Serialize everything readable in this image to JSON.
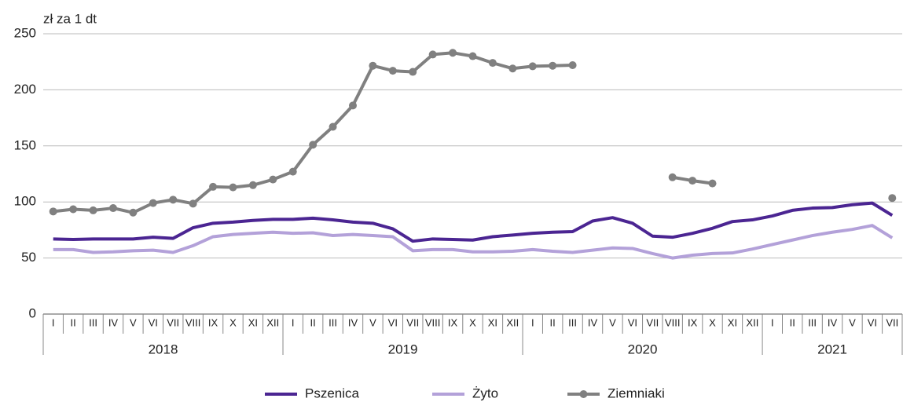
{
  "chart_data": {
    "type": "line",
    "y_axis_label": "zł za 1 dt",
    "categories": [
      "I",
      "II",
      "III",
      "IV",
      "V",
      "VI",
      "VII",
      "VIII",
      "IX",
      "X",
      "XI",
      "XII",
      "I",
      "II",
      "III",
      "IV",
      "V",
      "VI",
      "VII",
      "VIII",
      "IX",
      "X",
      "XI",
      "XII",
      "I",
      "II",
      "III",
      "IV",
      "V",
      "VI",
      "VII",
      "VIII",
      "IX",
      "X",
      "XI",
      "XII",
      "I",
      "II",
      "III",
      "IV",
      "V",
      "VI",
      "VII"
    ],
    "years": [
      "2018",
      "2019",
      "2020",
      "2021"
    ],
    "series": [
      {
        "name": "Pszenica",
        "color": "#4b2592",
        "markers": false,
        "values": [
          67,
          66.5,
          67,
          67,
          67,
          68.5,
          67.5,
          77,
          81,
          82,
          83.5,
          84.5,
          84.5,
          85.5,
          84,
          82,
          81,
          76,
          65,
          67,
          66.5,
          66,
          69,
          70.5,
          72,
          73,
          73.5,
          83,
          86,
          81,
          69.5,
          68.5,
          72,
          76.5,
          82.5,
          84,
          87.5,
          92.5,
          94.5,
          95,
          97.5,
          99,
          88
        ]
      },
      {
        "name": "Żyto",
        "color": "#b3a1d9",
        "markers": false,
        "values": [
          57.5,
          57.5,
          55,
          55.5,
          56.5,
          57,
          55,
          61,
          69,
          71,
          72,
          73,
          72,
          72.5,
          70,
          71,
          70,
          69,
          56.5,
          57.5,
          57.5,
          55.5,
          55.5,
          56,
          57.5,
          56,
          55,
          57,
          59,
          58.5,
          54,
          50,
          52.5,
          54,
          54.5,
          58,
          62,
          66,
          70,
          73,
          75.5,
          79,
          68
        ]
      },
      {
        "name": "Ziemniaki",
        "color": "#808080",
        "markers": true,
        "values": [
          91.5,
          93.5,
          92.5,
          94.5,
          90.5,
          99,
          102,
          98.5,
          113.5,
          113,
          115,
          120,
          127,
          151,
          167,
          186,
          221.5,
          217,
          216,
          231.5,
          233,
          230,
          224,
          219,
          221,
          221.5,
          222,
          null,
          null,
          null,
          null,
          122,
          119,
          116.5,
          null,
          null,
          null,
          null,
          null,
          null,
          null,
          null,
          103.5
        ]
      }
    ],
    "ylim": [
      0,
      250
    ],
    "yticks": [
      0,
      50,
      100,
      150,
      200,
      250
    ],
    "grid": true
  }
}
